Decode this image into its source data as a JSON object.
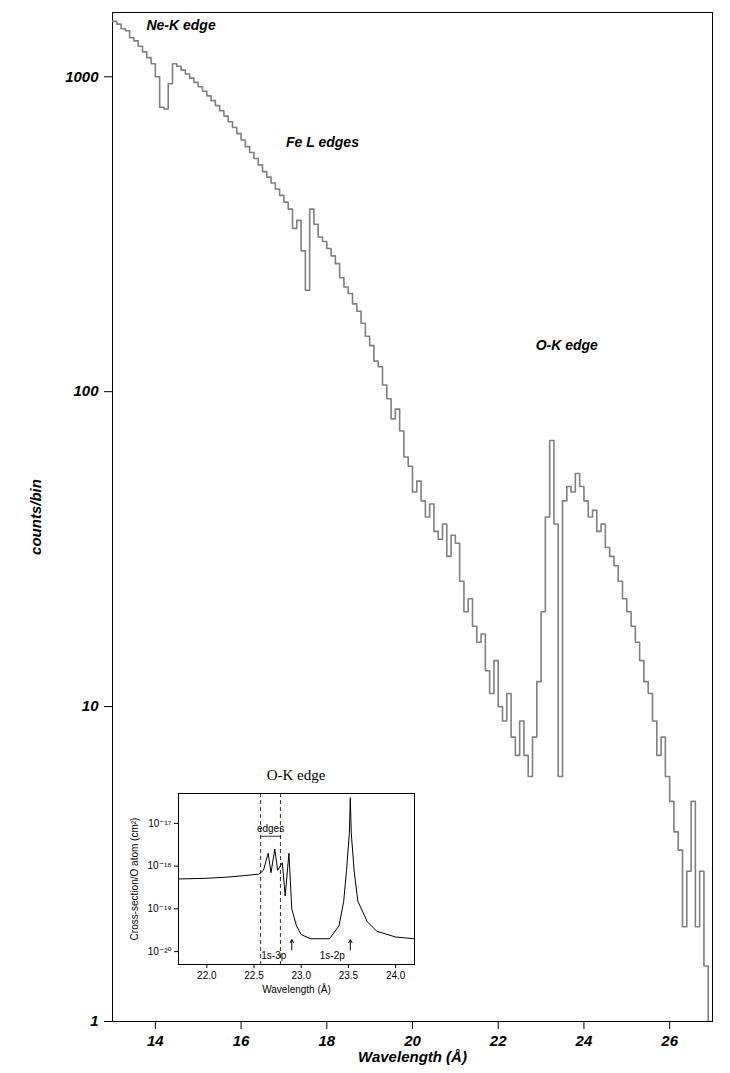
{
  "chart_data": [
    {
      "type": "line",
      "line_style": "step",
      "color": "#808080",
      "log": "y",
      "x_label": "Wavelength (Å)",
      "y_label": "counts/bin",
      "xlim": [
        13,
        27
      ],
      "xticks": [
        14,
        16,
        18,
        20,
        22,
        24,
        26
      ],
      "ylim": [
        1,
        1600
      ],
      "yticks": [
        1,
        10,
        100,
        1000
      ],
      "x": [
        13.0,
        13.1,
        13.2,
        13.3,
        13.4,
        13.5,
        13.6,
        13.7,
        13.8,
        13.9,
        14.0,
        14.1,
        14.2,
        14.3,
        14.4,
        14.5,
        14.6,
        14.7,
        14.8,
        14.9,
        15.0,
        15.1,
        15.2,
        15.3,
        15.4,
        15.5,
        15.6,
        15.7,
        15.8,
        15.9,
        16.0,
        16.1,
        16.2,
        16.3,
        16.4,
        16.5,
        16.6,
        16.7,
        16.8,
        16.9,
        17.0,
        17.1,
        17.2,
        17.3,
        17.4,
        17.5,
        17.6,
        17.7,
        17.8,
        17.9,
        18.0,
        18.1,
        18.2,
        18.3,
        18.4,
        18.5,
        18.6,
        18.7,
        18.8,
        18.9,
        19.0,
        19.1,
        19.2,
        19.3,
        19.4,
        19.5,
        19.6,
        19.7,
        19.8,
        19.9,
        20.0,
        20.1,
        20.2,
        20.3,
        20.4,
        20.5,
        20.6,
        20.7,
        20.8,
        20.9,
        21.0,
        21.1,
        21.2,
        21.3,
        21.4,
        21.5,
        21.6,
        21.7,
        21.8,
        21.9,
        22.0,
        22.1,
        22.2,
        22.3,
        22.4,
        22.5,
        22.6,
        22.7,
        22.8,
        22.9,
        23.0,
        23.1,
        23.2,
        23.3,
        23.4,
        23.5,
        23.6,
        23.7,
        23.8,
        23.9,
        24.0,
        24.1,
        24.2,
        24.3,
        24.4,
        24.5,
        24.6,
        24.7,
        24.8,
        24.9,
        25.0,
        25.1,
        25.2,
        25.3,
        25.4,
        25.5,
        25.6,
        25.7,
        25.8,
        25.9,
        26.0,
        26.1,
        26.2,
        26.3,
        26.4,
        26.5,
        26.6,
        26.7,
        26.8,
        26.9,
        27.0
      ],
      "values": [
        1500,
        1470,
        1420,
        1400,
        1330,
        1300,
        1250,
        1200,
        1150,
        1100,
        1000,
        800,
        790,
        950,
        1100,
        1080,
        1050,
        1020,
        990,
        960,
        930,
        900,
        870,
        840,
        810,
        780,
        750,
        720,
        690,
        660,
        630,
        600,
        575,
        550,
        525,
        500,
        480,
        460,
        440,
        420,
        400,
        380,
        330,
        350,
        280,
        210,
        380,
        340,
        310,
        300,
        285,
        270,
        255,
        230,
        215,
        205,
        190,
        180,
        165,
        150,
        140,
        125,
        120,
        105,
        95,
        82,
        88,
        75,
        62,
        58,
        48,
        52,
        45,
        40,
        44,
        36,
        34,
        38,
        30,
        35,
        33,
        25,
        20,
        22,
        18,
        16,
        17,
        13,
        11,
        14,
        10,
        9,
        11,
        8,
        7,
        9,
        7,
        6,
        8,
        12,
        20,
        40,
        70,
        38,
        6,
        45,
        50,
        48,
        55,
        50,
        45,
        40,
        42,
        36,
        38,
        32,
        30,
        28,
        25,
        22,
        20,
        18,
        16,
        14,
        12,
        11,
        9,
        7,
        8,
        6,
        5,
        4,
        3.5,
        2,
        3,
        5,
        2,
        3,
        1.5,
        1,
        1
      ],
      "annotations": [
        {
          "text": "Ne-K edge",
          "x": 14.6,
          "y": 1450
        },
        {
          "text": "Fe L edges",
          "x": 17.9,
          "y": 620
        },
        {
          "text": "O-K edge",
          "x": 23.6,
          "y": 140
        }
      ]
    },
    {
      "type": "line",
      "line_style": "solid",
      "color": "#000000",
      "log": "y",
      "title": "O-K edge",
      "x_label": "Wavelength (Å)",
      "y_label": "Cross-section/O atom (cm²)",
      "xlim": [
        21.7,
        24.2
      ],
      "xticks": [
        {
          "value": 22,
          "label": "22.0"
        },
        {
          "value": 22.5,
          "label": "22.5"
        },
        {
          "value": 23,
          "label": "23.0"
        },
        {
          "value": 23.5,
          "label": "23.5"
        },
        {
          "value": 24,
          "label": "24.0"
        }
      ],
      "ylim": [
        5e-21,
        5e-17
      ],
      "yticks": [
        {
          "value": 1e-20,
          "label": "10⁻²⁰"
        },
        {
          "value": 1e-19,
          "label": "10⁻¹⁹"
        },
        {
          "value": 1e-18,
          "label": "10⁻¹⁸"
        },
        {
          "value": 1e-17,
          "label": "10⁻¹⁷"
        }
      ],
      "x": [
        21.7,
        22.0,
        22.2,
        22.4,
        22.55,
        22.6,
        22.65,
        22.68,
        22.72,
        22.75,
        22.8,
        22.83,
        22.87,
        22.9,
        22.95,
        23.0,
        23.1,
        23.3,
        23.4,
        23.45,
        23.48,
        23.51,
        23.52,
        23.53,
        23.56,
        23.6,
        23.7,
        23.8,
        24.0,
        24.2
      ],
      "values": [
        5e-19,
        5.2e-19,
        5.5e-19,
        6e-19,
        6.5e-19,
        8e-19,
        2e-18,
        7e-19,
        2.5e-18,
        8e-19,
        1.2e-18,
        2e-19,
        2e-18,
        1e-19,
        4e-20,
        2.5e-20,
        2e-20,
        2e-20,
        4e-20,
        1.5e-19,
        8e-19,
        6e-18,
        4e-17,
        6e-18,
        8e-19,
        1.5e-19,
        5e-20,
        3e-20,
        2.2e-20,
        2e-20
      ],
      "edges": [
        22.57,
        22.78
      ],
      "annotations": [
        {
          "text": "edges",
          "x": 22.675,
          "y": 5e-18
        },
        {
          "text": "1s-3p",
          "x": 22.9,
          "y": 8e-21,
          "arrow_y": [
            1.1e-20,
            1.9e-20
          ]
        },
        {
          "text": "1s-2p",
          "x": 23.52,
          "y": 8e-21,
          "arrow_y": [
            1.1e-20,
            1.9e-20
          ]
        }
      ]
    }
  ]
}
